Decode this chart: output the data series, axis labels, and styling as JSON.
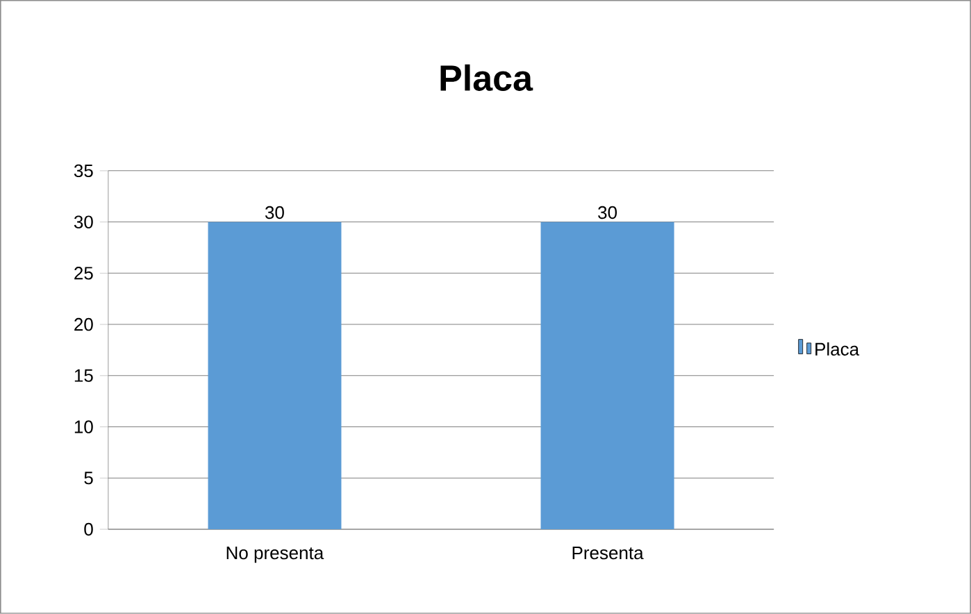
{
  "chart_data": {
    "type": "bar",
    "title": "Placa",
    "categories": [
      "No presenta",
      "Presenta"
    ],
    "series": [
      {
        "name": "Placa",
        "color": "#5b9bd5",
        "values": [
          30,
          30
        ]
      }
    ],
    "ylim": [
      0,
      35
    ],
    "yticks": [
      0,
      5,
      10,
      15,
      20,
      25,
      30,
      35
    ],
    "grid": "y",
    "legend": "right",
    "data_labels": true
  }
}
